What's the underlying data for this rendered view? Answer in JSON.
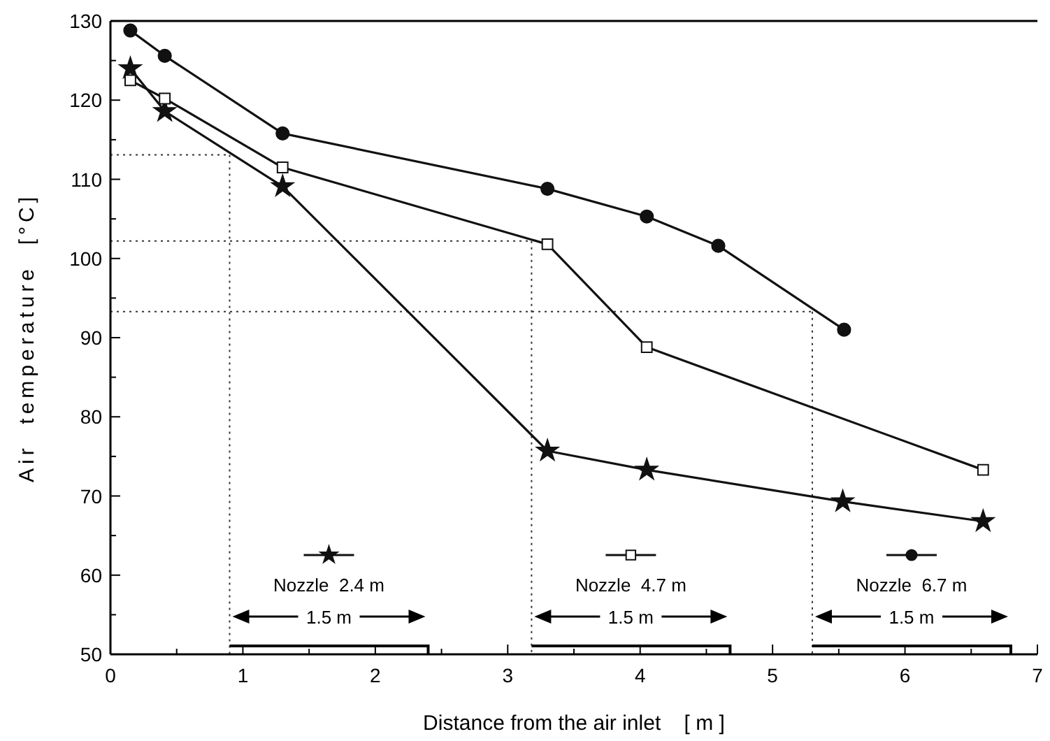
{
  "chart_data": {
    "type": "line",
    "xlabel": "Distance from the air inlet    [ m ]",
    "ylabel": "Air  temperature  [°C]",
    "xlim": [
      0,
      7
    ],
    "ylim": [
      50,
      130
    ],
    "xticks": [
      0,
      {
        "value": 0.5,
        "label": null
      },
      1,
      {
        "value": 1.5,
        "label": null
      },
      2,
      {
        "value": 2.5,
        "label": null
      },
      3,
      {
        "value": 3.5,
        "label": null
      },
      4,
      {
        "value": 4.5,
        "label": null
      },
      5,
      {
        "value": 5.5,
        "label": null
      },
      6,
      {
        "value": 6.5,
        "label": null
      },
      7
    ],
    "yticks": [
      50,
      {
        "value": 55,
        "label": null
      },
      60,
      {
        "value": 65,
        "label": null
      },
      70,
      {
        "value": 75,
        "label": null
      },
      80,
      {
        "value": 85,
        "label": null
      },
      90,
      {
        "value": 95,
        "label": null
      },
      100,
      {
        "value": 105,
        "label": null
      },
      110,
      {
        "value": 115,
        "label": null
      },
      120,
      {
        "value": 125,
        "label": null
      },
      130
    ],
    "grid": false,
    "legend": "bottom",
    "line_style": "solid",
    "series": [
      {
        "name": "Nozzle  2.4 m",
        "color": "#111111",
        "marker": "star",
        "x": [
          0.15,
          0.41,
          1.3,
          3.3,
          4.05,
          5.53,
          6.59
        ],
        "values": [
          124.0,
          118.6,
          109.1,
          75.7,
          73.3,
          69.3,
          66.8
        ]
      },
      {
        "name": "Nozzle  4.7 m",
        "color": "#111111",
        "marker": "square",
        "x": [
          0.15,
          0.41,
          1.3,
          3.3,
          4.05,
          6.59
        ],
        "values": [
          122.5,
          120.2,
          111.5,
          101.8,
          88.8,
          73.3
        ]
      },
      {
        "name": "Nozzle  6.7 m",
        "color": "#111111",
        "marker": "circle",
        "x": [
          0.15,
          0.41,
          1.3,
          3.3,
          4.05,
          4.59,
          5.54
        ],
        "values": [
          128.8,
          125.6,
          115.8,
          108.8,
          105.3,
          101.6,
          91.0
        ]
      }
    ],
    "ref_lines": [
      {
        "axis": "y",
        "value": 113.1,
        "line_style": "dotted"
      },
      {
        "axis": "y",
        "value": 102.2,
        "line_style": "dotted"
      },
      {
        "axis": "y",
        "value": 93.3,
        "line_style": "dotted"
      },
      {
        "axis": "x",
        "value": 0.9,
        "line_style": "dotted"
      },
      {
        "axis": "x",
        "value": 3.18,
        "line_style": "dotted"
      },
      {
        "axis": "x",
        "value": 5.3,
        "line_style": "dotted"
      }
    ],
    "annotations": [
      "1.5 m",
      "1.5 m",
      "1.5 m"
    ]
  }
}
